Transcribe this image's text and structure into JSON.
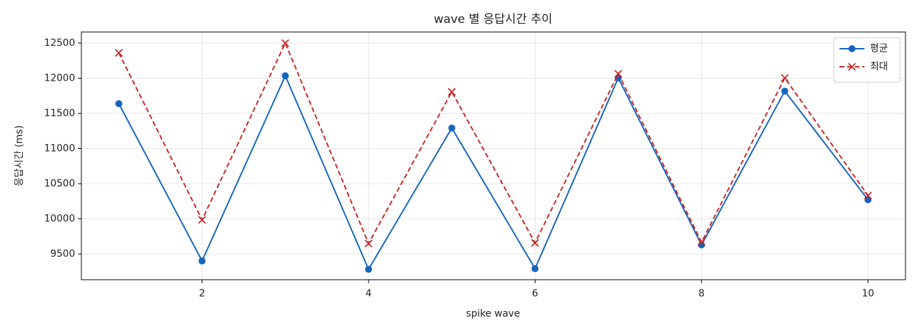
{
  "chart_data": {
    "type": "line",
    "title": "wave 별 응답시간 추이",
    "xlabel": "spike wave",
    "ylabel": "응답시간 (ms)",
    "x": [
      1,
      2,
      3,
      4,
      5,
      6,
      7,
      8,
      9,
      10
    ],
    "series": [
      {
        "name": "평균",
        "color": "#1565c0",
        "marker": "o",
        "linestyle": "solid",
        "values": [
          11639,
          9401,
          12035,
          9282,
          11292,
          9292,
          12005,
          9629,
          11817,
          10272
        ]
      },
      {
        "name": "최대",
        "color": "#c62828",
        "marker": "x",
        "linestyle": "dashed",
        "values": [
          12361,
          9985,
          12500,
          9649,
          11807,
          9658,
          12064,
          9668,
          12005,
          10332
        ]
      }
    ],
    "xlim": [
      0.55,
      10.45
    ],
    "xticks": [
      2,
      4,
      6,
      8,
      10
    ],
    "ylim": [
      9134,
      12658
    ],
    "yticks": [
      9500,
      10000,
      10500,
      11000,
      11500,
      12000,
      12500
    ],
    "grid": true,
    "legend": "upper right"
  }
}
